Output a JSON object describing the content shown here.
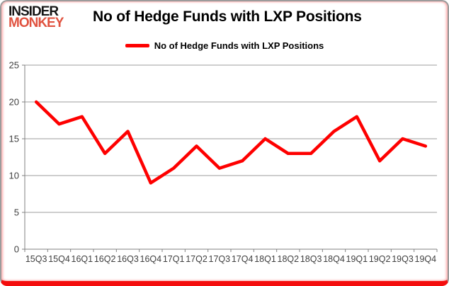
{
  "logo": {
    "line1": "INSIDER",
    "line2": "MONKEY"
  },
  "header": {
    "title": "No of Hedge Funds with LXP Positions"
  },
  "legend": {
    "label": "No of Hedge Funds with LXP Positions"
  },
  "colors": {
    "line": "#fe0000",
    "logo_accent": "#e0523f",
    "gridline": "#9e9e9e",
    "axis": "#808080",
    "label": "#3f3f3f",
    "border_bottom": "#f40d0d"
  },
  "chart_data": {
    "type": "line",
    "title": "No of Hedge Funds with LXP Positions",
    "categories": [
      "15Q3",
      "15Q4",
      "16Q1",
      "16Q2",
      "16Q3",
      "16Q4",
      "17Q1",
      "17Q2",
      "17Q3",
      "17Q4",
      "18Q1",
      "18Q2",
      "18Q3",
      "18Q4",
      "19Q1",
      "19Q2",
      "19Q3",
      "19Q4"
    ],
    "series": [
      {
        "name": "No of Hedge Funds with LXP Positions",
        "values": [
          20,
          17,
          18,
          13,
          16,
          9,
          11,
          14,
          11,
          12,
          15,
          13,
          13,
          16,
          18,
          12,
          15,
          14
        ]
      }
    ],
    "xlabel": "",
    "ylabel": "",
    "ylim": [
      0,
      25
    ],
    "yticks": [
      0,
      5,
      10,
      15,
      20,
      25
    ],
    "grid": true,
    "legend_position": "top-center"
  }
}
